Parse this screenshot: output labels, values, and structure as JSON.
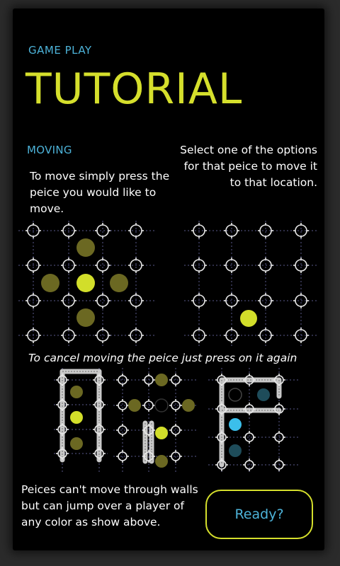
{
  "header": {
    "subtitle": "GAME PLAY",
    "title": "TUTORIAL"
  },
  "section": {
    "heading": "MOVING"
  },
  "instructions": {
    "move": "To move simply press the peice you would like to move.",
    "select": "Select one of the options for that peice to move it to that location.",
    "cancel": "To cancel moving the peice just press on it again",
    "walls": "Peices can't move through walls but can jump over a player of any color as show above."
  },
  "ready_button": {
    "label": "Ready?"
  },
  "colors": {
    "title": "#d5df2c",
    "accent_blue": "#4db3d9",
    "piece_yellow": "#d2de2a",
    "piece_olive": "#6b6822",
    "piece_blue": "#3bbfeb",
    "piece_teal": "#1e4c5a",
    "wall": "#c8c8c8"
  },
  "icons": [
    "node-ring-icon",
    "game-piece-icon",
    "wall-segment-icon"
  ]
}
